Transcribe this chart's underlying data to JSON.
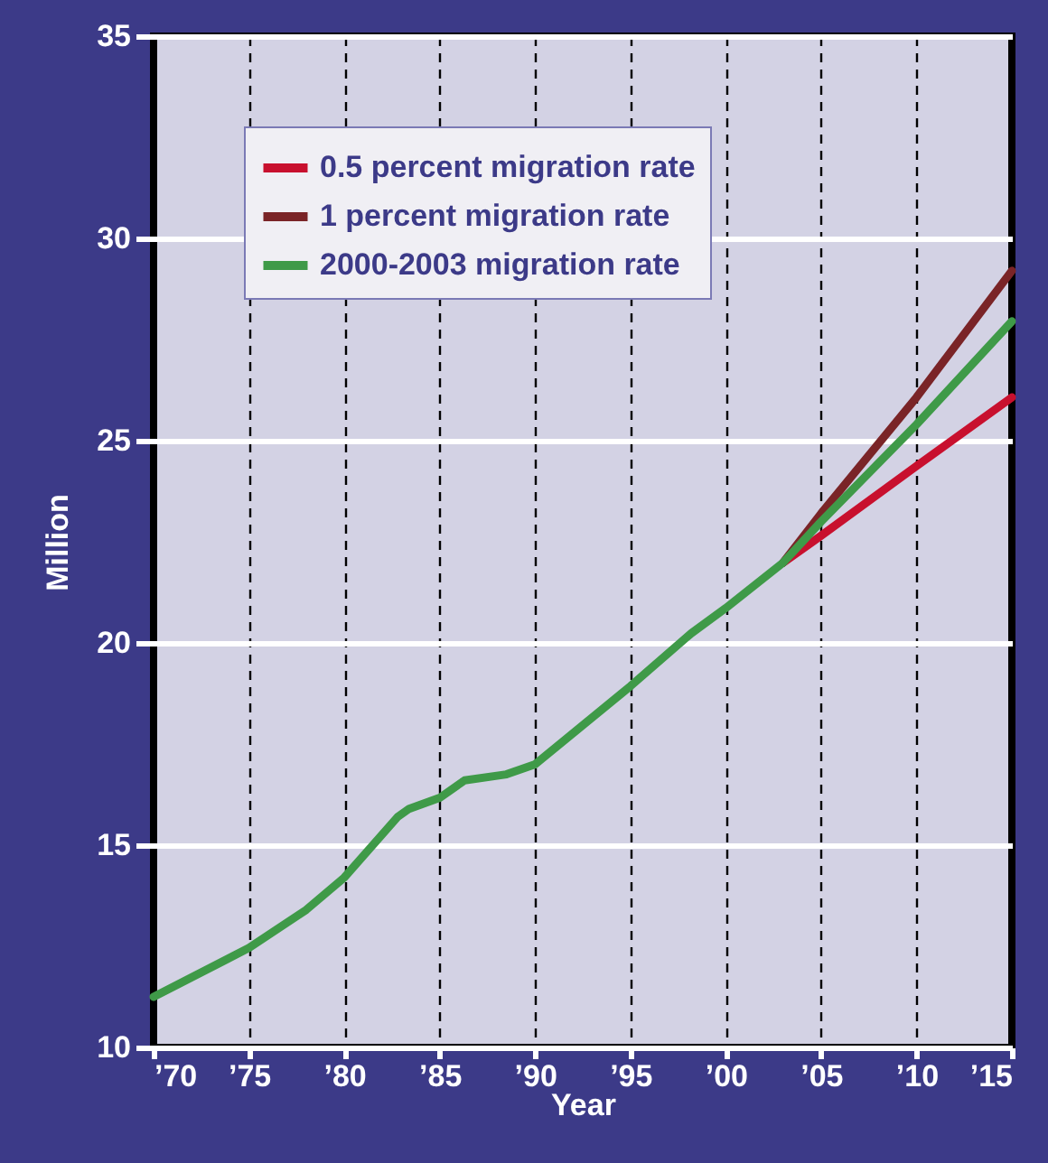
{
  "chart_data": {
    "type": "line",
    "xlabel": "Year",
    "ylabel": "Million",
    "series": [
      {
        "name": "0.5 percent migration rate",
        "color": "#c8102e",
        "x": [
          2003,
          2005,
          2010,
          2015
        ],
        "values": [
          21.98,
          22.65,
          24.37,
          26.07
        ]
      },
      {
        "name": "1 percent migration rate",
        "color": "#7a2427",
        "x": [
          2003,
          2005,
          2010,
          2015
        ],
        "values": [
          21.98,
          23.2,
          26.07,
          29.2
        ]
      },
      {
        "name": "2000-2003 migration rate",
        "color": "#3f9a48",
        "x": [
          1970,
          1975,
          1978,
          1980,
          1982.8,
          1983.4,
          1985,
          1986.3,
          1988.5,
          1990,
          1995,
          1998.2,
          2000,
          2003,
          2005,
          2010,
          2015
        ],
        "values": [
          11.25,
          12.46,
          13.4,
          14.2,
          15.7,
          15.9,
          16.17,
          16.6,
          16.75,
          17.0,
          18.93,
          20.24,
          20.86,
          21.98,
          23.0,
          25.4,
          27.95
        ]
      }
    ],
    "xlim": [
      1970,
      2015
    ],
    "xticks": [
      {
        "value": 1970,
        "label": "’70"
      },
      {
        "value": 1975,
        "label": "’75"
      },
      {
        "value": 1980,
        "label": "’80"
      },
      {
        "value": 1985,
        "label": "’85"
      },
      {
        "value": 1990,
        "label": "’90"
      },
      {
        "value": 1995,
        "label": "’95"
      },
      {
        "value": 2000,
        "label": "’00"
      },
      {
        "value": 2005,
        "label": "’05"
      },
      {
        "value": 2010,
        "label": "’10"
      },
      {
        "value": 2015,
        "label": "’15"
      }
    ],
    "ylim": [
      10,
      35
    ],
    "yticks": [
      10,
      15,
      20,
      25,
      30,
      35
    ],
    "grid": true,
    "legend": "top left",
    "line_style": "solid"
  }
}
